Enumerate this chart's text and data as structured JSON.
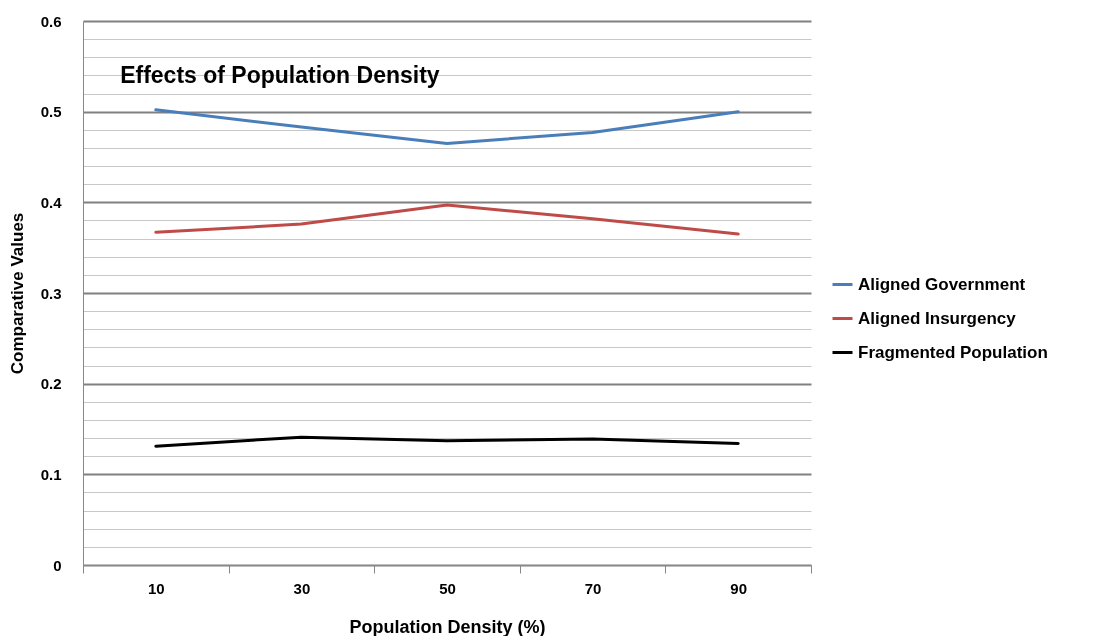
{
  "chart_data": {
    "type": "line",
    "title": "Effects of Population  Density",
    "xlabel": "Population Density (%)",
    "ylabel": "Comparative Values",
    "categories": [
      "10",
      "30",
      "50",
      "70",
      "90"
    ],
    "series": [
      {
        "name": "Aligned Government",
        "color": "#4a7ebb",
        "values": [
          0.502,
          0.483,
          0.465,
          0.477,
          0.5
        ]
      },
      {
        "name": "Aligned Insurgency",
        "color": "#be4b48",
        "values": [
          0.367,
          0.376,
          0.397,
          0.382,
          0.365
        ]
      },
      {
        "name": "Fragmented Population",
        "color": "#000000",
        "values": [
          0.131,
          0.141,
          0.137,
          0.139,
          0.134
        ]
      }
    ],
    "ylim": [
      0,
      0.6
    ],
    "yticks": [
      0,
      {
        "value": 0.02,
        "label": null
      },
      {
        "value": 0.04,
        "label": null
      },
      {
        "value": 0.06,
        "label": null
      },
      {
        "value": 0.08,
        "label": null
      },
      0.1,
      {
        "value": 0.12,
        "label": null
      },
      {
        "value": 0.14,
        "label": null
      },
      {
        "value": 0.16,
        "label": null
      },
      {
        "value": 0.18,
        "label": null
      },
      0.2,
      {
        "value": 0.22,
        "label": null
      },
      {
        "value": 0.24,
        "label": null
      },
      {
        "value": 0.26,
        "label": null
      },
      {
        "value": 0.28,
        "label": null
      },
      0.3,
      {
        "value": 0.32,
        "label": null
      },
      {
        "value": 0.34,
        "label": null
      },
      {
        "value": 0.36,
        "label": null
      },
      {
        "value": 0.38,
        "label": null
      },
      0.4,
      {
        "value": 0.42,
        "label": null
      },
      {
        "value": 0.44,
        "label": null
      },
      {
        "value": 0.46,
        "label": null
      },
      {
        "value": 0.48,
        "label": null
      },
      0.5,
      {
        "value": 0.52,
        "label": null
      },
      {
        "value": 0.54,
        "label": null
      },
      {
        "value": 0.56,
        "label": null
      },
      {
        "value": 0.58,
        "label": null
      },
      0.6
    ],
    "grid": true,
    "legend": "right",
    "marker": "none",
    "line_style": "solid"
  }
}
